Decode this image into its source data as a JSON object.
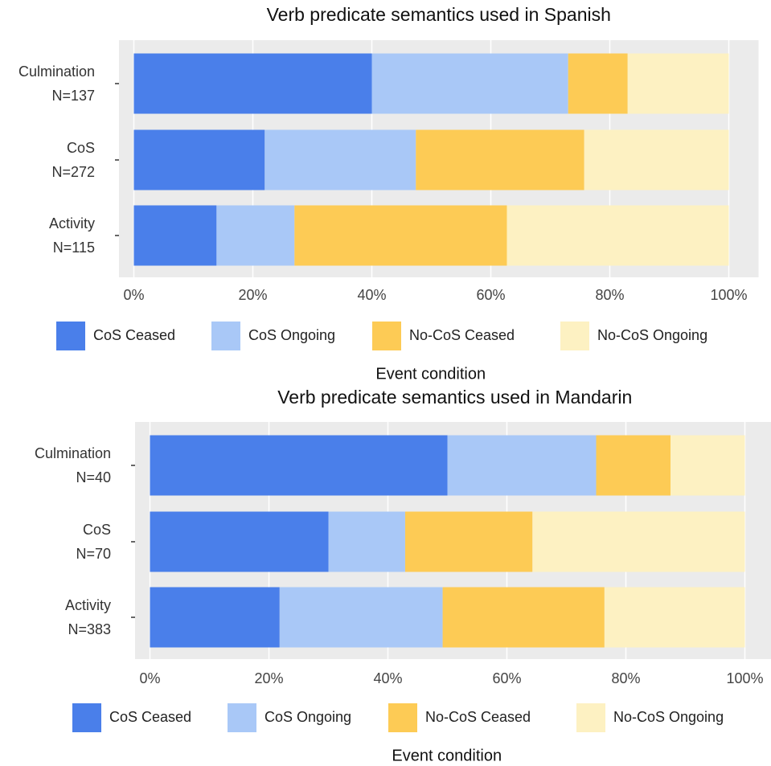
{
  "chart_data": [
    {
      "type": "stacked_bar_horizontal",
      "title": "Verb predicate semantics used in Spanish",
      "categories": [
        "Culmination\nN=137",
        "CoS\nN=272",
        "Activity\nN=115"
      ],
      "series": [
        {
          "name": "CoS Ceased",
          "color": "#4a7fea",
          "values": [
            40,
            22,
            13.9
          ]
        },
        {
          "name": "CoS Ongoing",
          "color": "#a9c8f7",
          "values": [
            33,
            25.4,
            13.1
          ]
        },
        {
          "name": "No-CoS Ceased",
          "color": "#fdcb55",
          "values": [
            10,
            28.3,
            35.7
          ]
        },
        {
          "name": "No-CoS Ongoing",
          "color": "#fdf1c2",
          "values": [
            17,
            24.3,
            37.3
          ]
        }
      ],
      "xlim": [
        -2.5,
        105
      ],
      "xticks": [
        {
          "value": 0,
          "label": "0%"
        },
        {
          "value": 20,
          "label": "20%"
        },
        {
          "value": 40,
          "label": "40%"
        },
        {
          "value": 60,
          "label": "60%"
        },
        {
          "value": 80,
          "label": "80%"
        },
        {
          "value": 100,
          "label": "100%"
        }
      ],
      "x_label": "Event condition",
      "grid": true,
      "legend": "bottom"
    },
    {
      "type": "stacked_bar_horizontal",
      "title": "Verb predicate semantics used in Mandarin",
      "categories": [
        "Culmination\nN=40",
        "CoS\nN=70",
        "Activity\nN=383"
      ],
      "series": [
        {
          "name": "CoS Ceased",
          "color": "#4a7fea",
          "values": [
            50,
            30,
            21.8
          ]
        },
        {
          "name": "CoS Ongoing",
          "color": "#a9c8f7",
          "values": [
            25,
            12.9,
            27.4
          ]
        },
        {
          "name": "No-CoS Ceased",
          "color": "#fdcb55",
          "values": [
            12.5,
            21.4,
            27.2
          ]
        },
        {
          "name": "No-CoS Ongoing",
          "color": "#fdf1c2",
          "values": [
            12.5,
            35.7,
            23.6
          ]
        }
      ],
      "xlim": [
        -2.5,
        105
      ],
      "xticks": [
        {
          "value": 0,
          "label": "0%"
        },
        {
          "value": 20,
          "label": "20%"
        },
        {
          "value": 40,
          "label": "40%"
        },
        {
          "value": 60,
          "label": "60%"
        },
        {
          "value": 80,
          "label": "80%"
        },
        {
          "value": 100,
          "label": "100%"
        }
      ],
      "x_label": "Event condition",
      "grid": true,
      "legend": "bottom"
    }
  ]
}
